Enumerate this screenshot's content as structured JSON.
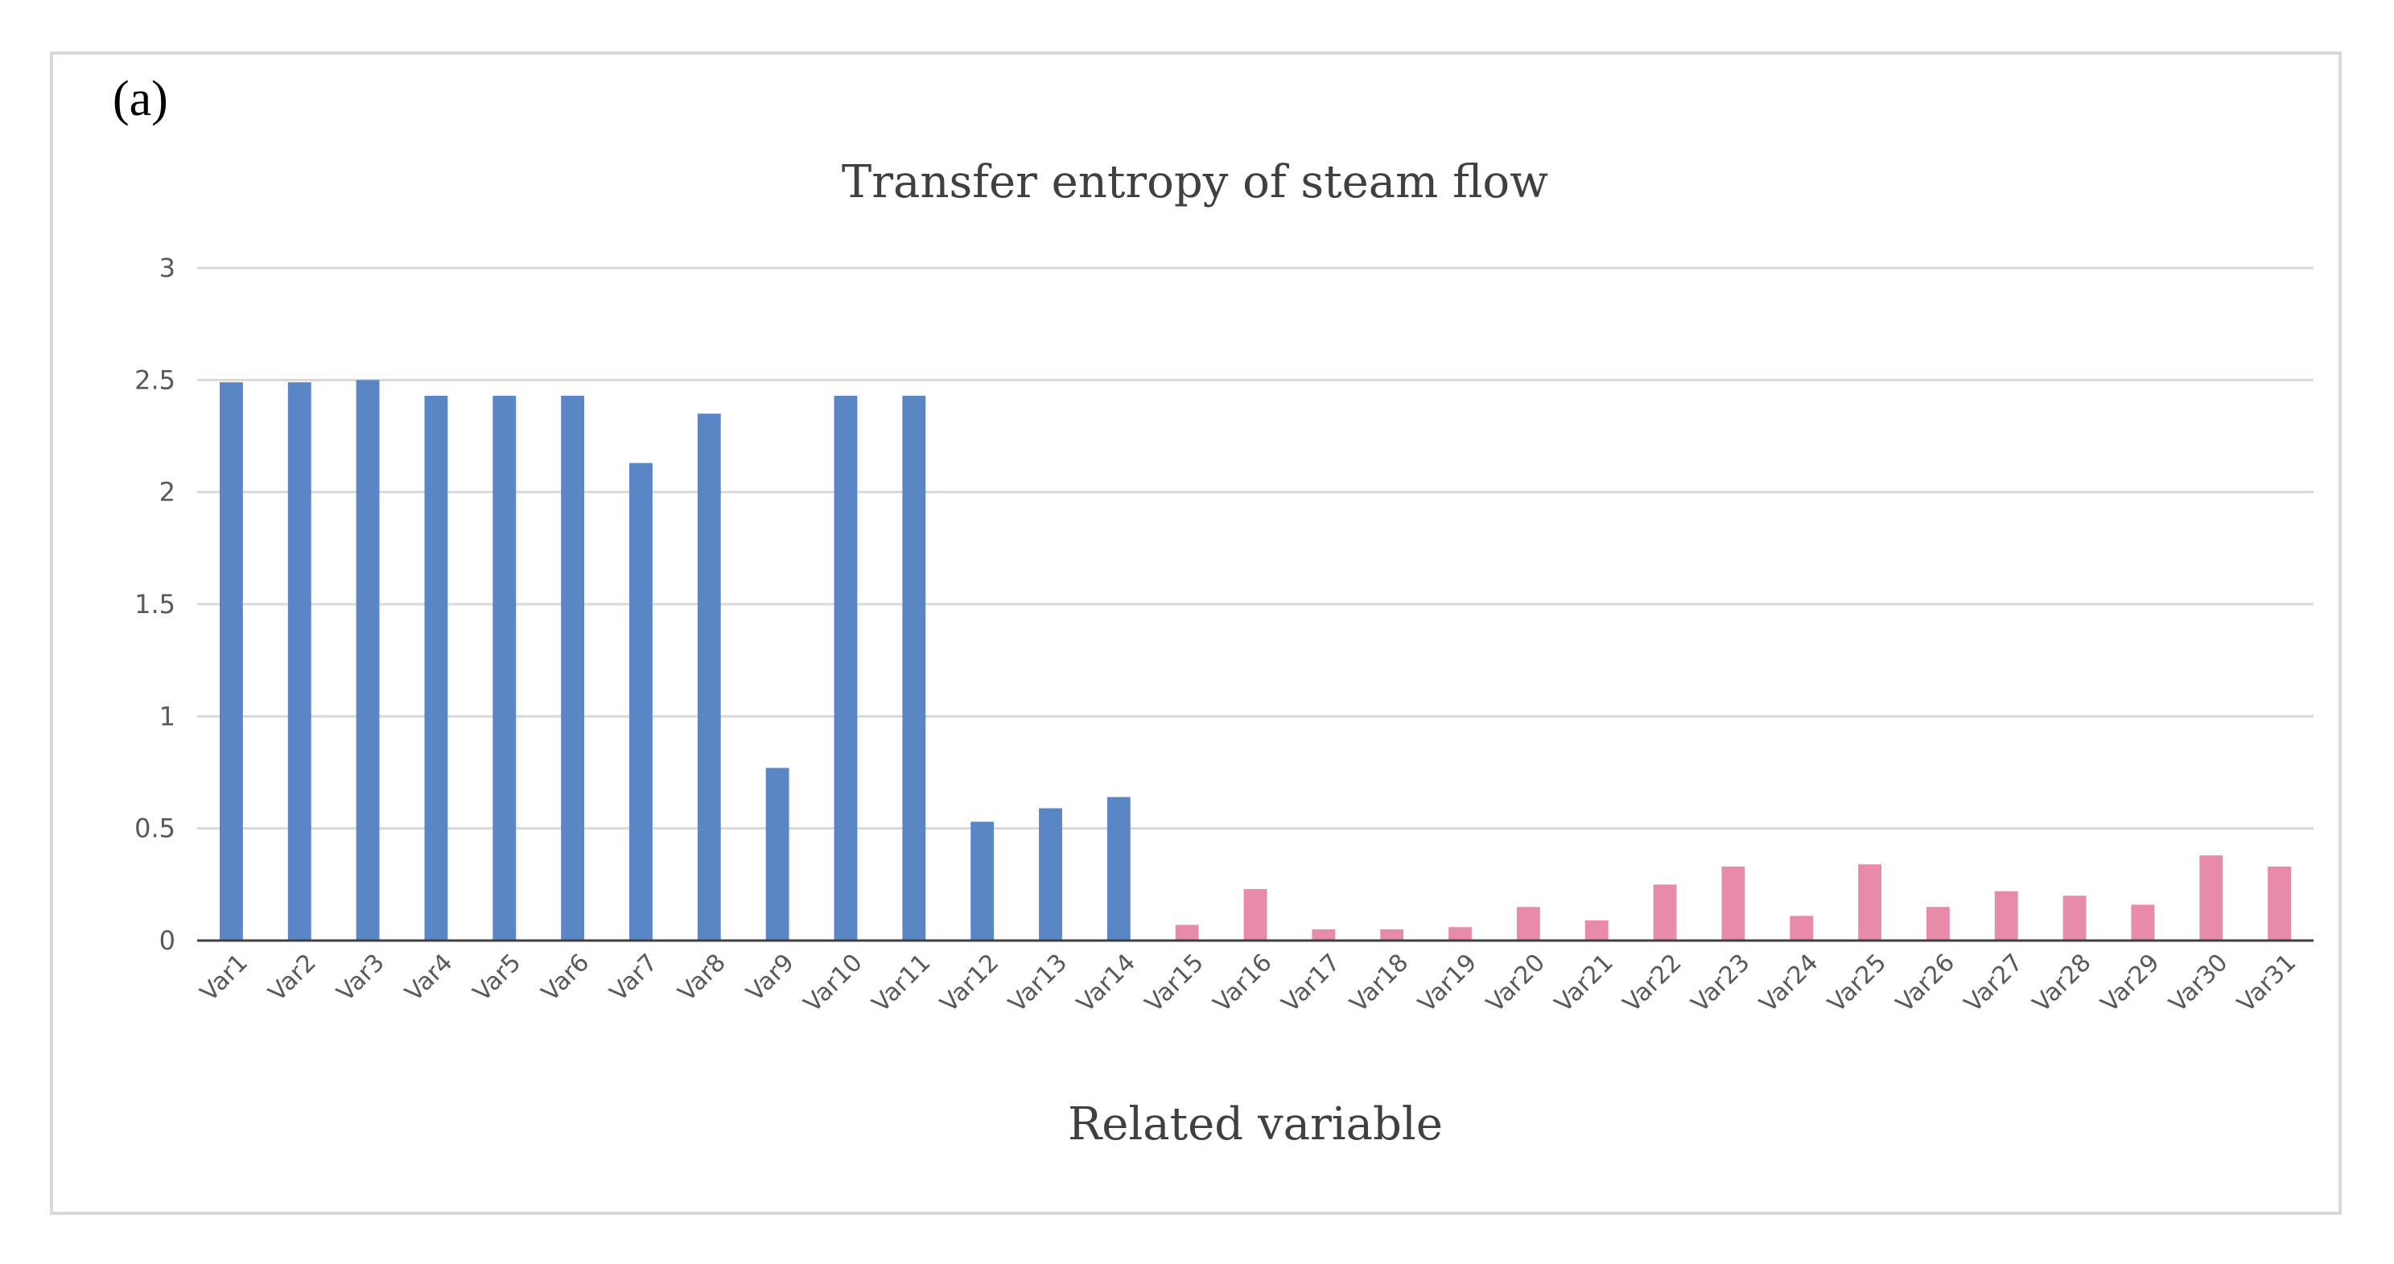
{
  "panel_label": "(a)",
  "chart_data": {
    "type": "bar",
    "title": "Transfer entropy of steam flow",
    "xlabel": "Related variable",
    "ylabel": "",
    "ylim": [
      0,
      3
    ],
    "yticks": [
      0,
      0.5,
      1,
      1.5,
      2,
      2.5,
      3
    ],
    "ytick_labels": [
      "0",
      "0.5",
      "1",
      "1.5",
      "2",
      "2.5",
      "3"
    ],
    "grid": "horizontal",
    "categories": [
      "Var1",
      "Var2",
      "Var3",
      "Var4",
      "Var5",
      "Var6",
      "Var7",
      "Var8",
      "Var9",
      "Var10",
      "Var11",
      "Var12",
      "Var13",
      "Var14",
      "Var15",
      "Var16",
      "Var17",
      "Var18",
      "Var19",
      "Var20",
      "Var21",
      "Var22",
      "Var23",
      "Var24",
      "Var25",
      "Var26",
      "Var27",
      "Var28",
      "Var29",
      "Var30",
      "Var31"
    ],
    "values": [
      2.49,
      2.49,
      2.5,
      2.43,
      2.43,
      2.43,
      2.13,
      2.35,
      0.77,
      2.43,
      2.43,
      0.53,
      0.59,
      0.64,
      0.07,
      0.23,
      0.05,
      0.05,
      0.06,
      0.15,
      0.09,
      0.25,
      0.33,
      0.11,
      0.34,
      0.15,
      0.22,
      0.2,
      0.16,
      0.38,
      0.33
    ],
    "bar_colors": [
      "#5b86c5",
      "#5b86c5",
      "#5b86c5",
      "#5b86c5",
      "#5b86c5",
      "#5b86c5",
      "#5b86c5",
      "#5b86c5",
      "#5b86c5",
      "#5b86c5",
      "#5b86c5",
      "#5b86c5",
      "#5b86c5",
      "#5b86c5",
      "#e88ba8",
      "#e88ba8",
      "#e88ba8",
      "#e88ba8",
      "#e88ba8",
      "#e88ba8",
      "#e88ba8",
      "#e88ba8",
      "#e88ba8",
      "#e88ba8",
      "#e88ba8",
      "#e88ba8",
      "#e88ba8",
      "#e88ba8",
      "#e88ba8",
      "#e88ba8",
      "#e88ba8"
    ],
    "colors": {
      "related_group": "#5b86c5",
      "other_group": "#e88ba8",
      "grid": "#d9d9d9",
      "axis": "#404040"
    }
  }
}
